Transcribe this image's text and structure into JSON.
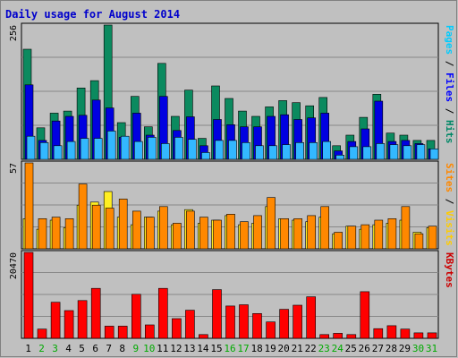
{
  "chart_data": {
    "type": "bar",
    "title": "Daily usage for August 2014",
    "days": [
      "1",
      "2",
      "3",
      "4",
      "5",
      "6",
      "7",
      "8",
      "9",
      "10",
      "11",
      "12",
      "13",
      "14",
      "15",
      "16",
      "17",
      "18",
      "19",
      "20",
      "21",
      "22",
      "23",
      "24",
      "25",
      "26",
      "27",
      "28",
      "29",
      "30",
      "31"
    ],
    "weekend_days": [
      "2",
      "3",
      "9",
      "10",
      "16",
      "17",
      "23",
      "24",
      "30",
      "31"
    ],
    "panels": [
      {
        "name": "hits-files-pages",
        "ymax_label": "256",
        "ymax": 256,
        "side_labels": [
          {
            "text": "Pages",
            "color": "#00ccff"
          },
          {
            "text": " / ",
            "color": "#000000"
          },
          {
            "text": "Files",
            "color": "#0000ff"
          },
          {
            "text": " / ",
            "color": "#000000"
          },
          {
            "text": "Hits",
            "color": "#008866"
          }
        ],
        "series": [
          {
            "name": "Hits",
            "color": "#0b8a5f",
            "values": [
              210,
              60,
              88,
              92,
              136,
              150,
              256,
              70,
              120,
              62,
              183,
              82,
              132,
              40,
              140,
              116,
              92,
              82,
              100,
              112,
              108,
              102,
              118,
              26,
              46,
              80,
              124,
              50,
              46,
              36,
              36
            ]
          },
          {
            "name": "Files",
            "color": "#0000e0",
            "values": [
              142,
              36,
              73,
              82,
              84,
              113,
              98,
              42,
              88,
              46,
              120,
              55,
              81,
              26,
              76,
              66,
              62,
              62,
              82,
              85,
              76,
              79,
              88,
              16,
              34,
              58,
              111,
              34,
              36,
              30,
              20
            ]
          },
          {
            "name": "Pages",
            "color": "#33b8ff",
            "values": [
              44,
              32,
              26,
              34,
              40,
              40,
              54,
              44,
              34,
              42,
              30,
              42,
              38,
              13,
              36,
              36,
              32,
              26,
              26,
              28,
              32,
              32,
              34,
              8,
              24,
              24,
              30,
              28,
              26,
              28,
              20
            ]
          }
        ]
      },
      {
        "name": "visits-sites",
        "ymax_label": "57",
        "ymax": 57,
        "side_labels": [
          {
            "text": "Sites",
            "color": "#ff8800"
          },
          {
            "text": " / ",
            "color": "#000000"
          },
          {
            "text": "Visits",
            "color": "#ffcc00"
          }
        ],
        "series": [
          {
            "name": "Visits",
            "color": "#ffee22",
            "values": [
              20,
              13,
              19,
              14,
              29,
              31,
              38,
              21,
              16,
              21,
              25,
              16,
              26,
              17,
              19,
              22,
              16,
              17,
              28,
              20,
              19,
              18,
              21,
              10,
              15,
              13,
              16,
              17,
              19,
              11,
              14
            ]
          },
          {
            "name": "Sites",
            "color": "#ff8800",
            "values": [
              57,
              20,
              21,
              20,
              43,
              29,
              27,
              33,
              25,
              21,
              28,
              17,
              25,
              21,
              19,
              23,
              18,
              22,
              34,
              20,
              20,
              22,
              28,
              11,
              15,
              16,
              19,
              20,
              28,
              10,
              15
            ]
          }
        ]
      },
      {
        "name": "kbytes",
        "ymax_label": "20470",
        "ymax": 20470,
        "side_labels": [
          {
            "text": "KBytes",
            "color": "#cc0000"
          }
        ],
        "series": [
          {
            "name": "KBytes",
            "color": "#ff0000",
            "values": [
              20470,
              2200,
              8600,
              6600,
              9000,
              11900,
              2900,
              2900,
              10500,
              3200,
              11900,
              4700,
              6700,
              900,
              11600,
              7700,
              8000,
              5900,
              3900,
              6900,
              7900,
              9900,
              900,
              1200,
              900,
              11100,
              2300,
              3000,
              2200,
              1300,
              1300
            ]
          }
        ]
      }
    ],
    "colors": {
      "background": "#c0c0c0",
      "plot_border": "#000000",
      "weekday_label": "#000000",
      "weekend_label": "#00aa00",
      "title": "#0000cc"
    }
  }
}
